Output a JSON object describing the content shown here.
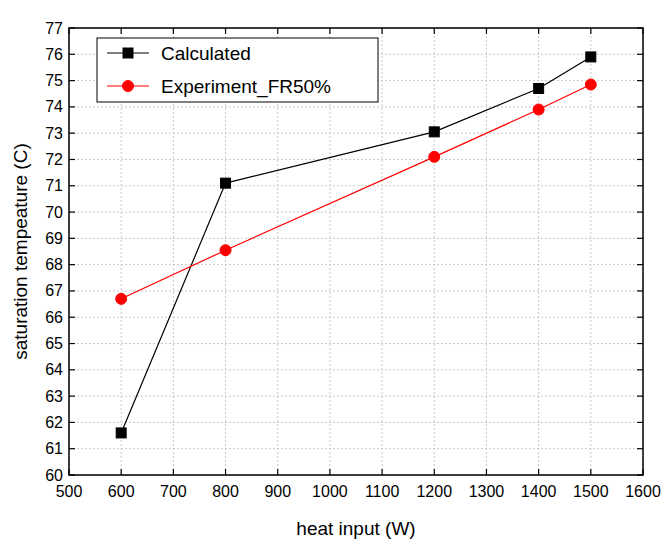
{
  "chart_data": {
    "type": "line",
    "x_label": "heat input (W)",
    "y_label": "saturation tempeature (C)",
    "x": [
      600,
      800,
      1200,
      1400,
      1500
    ],
    "series": [
      {
        "name": "Calculated",
        "color": "#000000",
        "marker": "square",
        "line_style": "solid",
        "values": [
          61.6,
          71.1,
          73.05,
          74.7,
          75.9
        ]
      },
      {
        "name": "Experiment_FR50%",
        "color": "#ff0000",
        "marker": "circle",
        "line_style": "solid",
        "values": [
          66.7,
          68.55,
          72.1,
          73.9,
          74.85
        ]
      }
    ],
    "xlim": [
      500,
      1600
    ],
    "xticks": [
      500,
      600,
      700,
      800,
      900,
      1000,
      1100,
      1200,
      1300,
      1400,
      1500,
      1600
    ],
    "ylim": [
      60,
      77
    ],
    "yticks": [
      60,
      61,
      62,
      63,
      64,
      65,
      66,
      67,
      68,
      69,
      70,
      71,
      72,
      73,
      74,
      75,
      76,
      77
    ],
    "grid": true,
    "legend": "top-left"
  }
}
